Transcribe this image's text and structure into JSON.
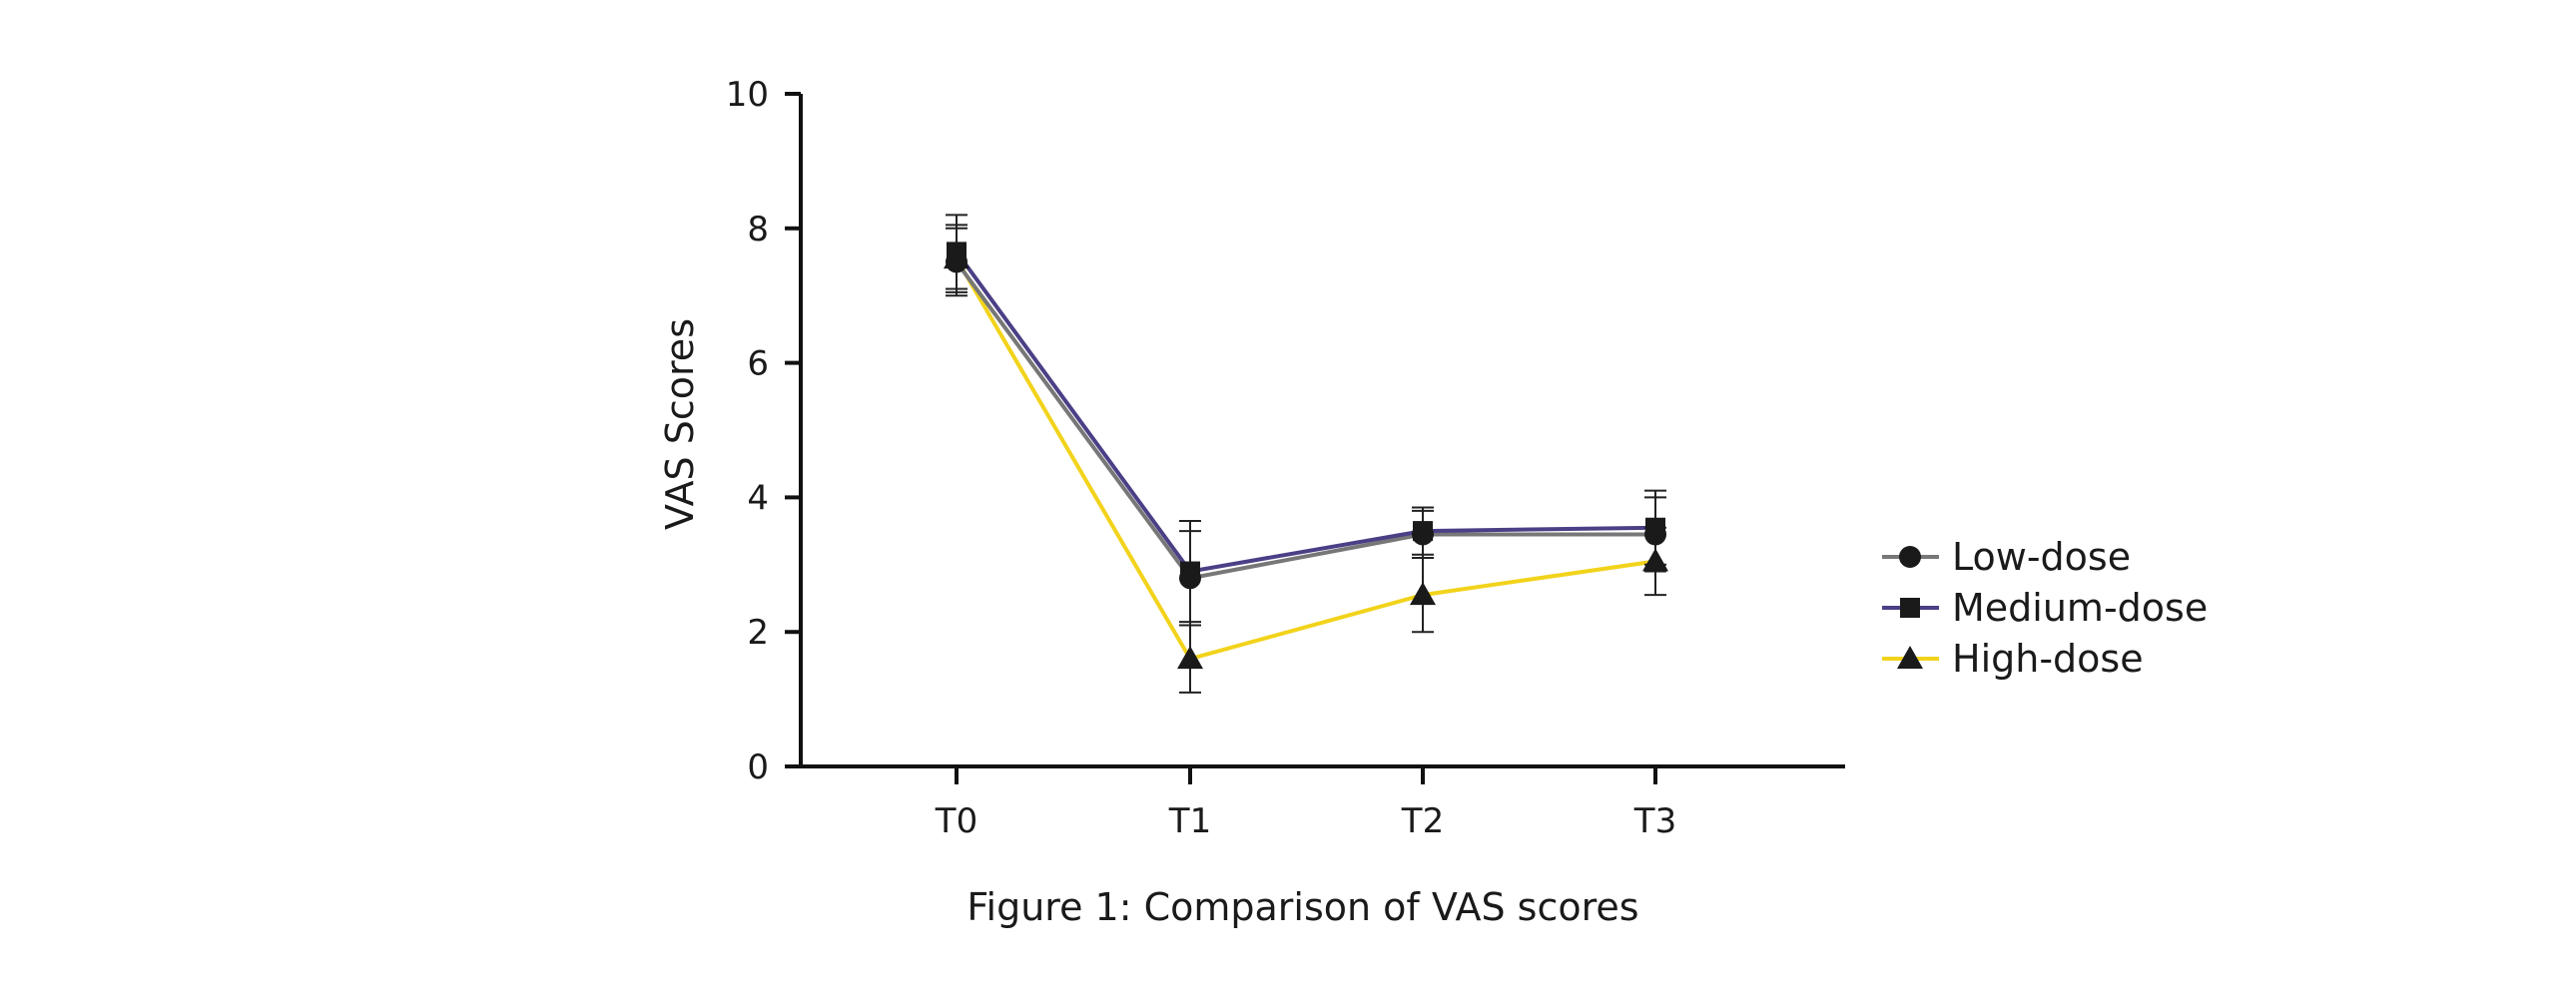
{
  "chart_data": {
    "type": "line",
    "caption": "Figure 1: Comparison of VAS scores",
    "ylabel": "VAS Scores",
    "xlabel": "",
    "categories": [
      "T0",
      "T1",
      "T2",
      "T3"
    ],
    "ylim": [
      0,
      10
    ],
    "yticks": [
      "0",
      "2",
      "4",
      "6",
      "8",
      "10"
    ],
    "grid": false,
    "legend_position": "right",
    "series": [
      {
        "name": "Low-dose",
        "color": "#777777",
        "marker": "circle",
        "values": [
          7.5,
          2.8,
          3.45,
          3.45
        ],
        "errors": [
          0.5,
          0.7,
          0.35,
          0.55
        ]
      },
      {
        "name": "Medium-dose",
        "color": "#4b3f86",
        "marker": "square",
        "values": [
          7.65,
          2.9,
          3.5,
          3.55
        ],
        "errors": [
          0.55,
          0.75,
          0.35,
          0.55
        ]
      },
      {
        "name": "High-dose",
        "color": "#f2d31b",
        "marker": "triangle",
        "values": [
          7.55,
          1.6,
          2.55,
          3.05
        ],
        "errors": [
          0.5,
          0.5,
          0.55,
          0.5
        ]
      }
    ]
  }
}
